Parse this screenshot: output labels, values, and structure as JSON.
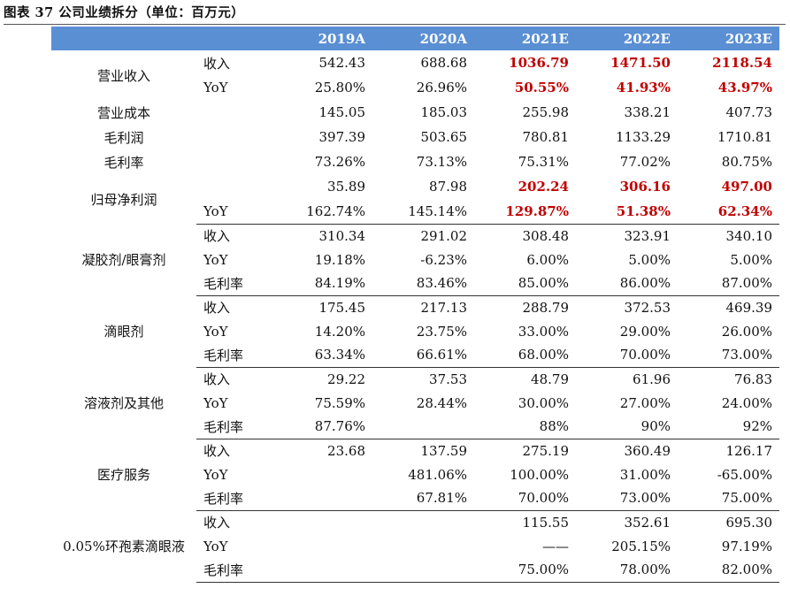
{
  "title": "图表 37  公司业绩拆分（单位：百万元）",
  "header": {
    "years": [
      "2019A",
      "2020A",
      "2021E",
      "2022E",
      "2023E"
    ]
  },
  "colors": {
    "header_bg": "#5b8fd3",
    "highlight": "#c00000"
  },
  "summary": {
    "revenue_label": "营业收入",
    "revenue_rows": [
      {
        "metric": "收入",
        "values": [
          "542.43",
          "688.68",
          "1036.79",
          "1471.50",
          "2118.54"
        ],
        "highlight": [
          false,
          false,
          true,
          true,
          true
        ]
      },
      {
        "metric": "YoY",
        "values": [
          "25.80%",
          "26.96%",
          "50.55%",
          "41.93%",
          "43.97%"
        ],
        "highlight": [
          false,
          false,
          true,
          true,
          true
        ]
      }
    ],
    "single_rows": [
      {
        "label": "营业成本",
        "values": [
          "145.05",
          "185.03",
          "255.98",
          "338.21",
          "407.73"
        ]
      },
      {
        "label": "毛利润",
        "values": [
          "397.39",
          "503.65",
          "780.81",
          "1133.29",
          "1710.81"
        ]
      },
      {
        "label": "毛利率",
        "values": [
          "73.26%",
          "73.13%",
          "75.31%",
          "77.02%",
          "80.75%"
        ]
      }
    ],
    "net_label": "归母净利润",
    "net_rows": [
      {
        "metric": "",
        "values": [
          "35.89",
          "87.98",
          "202.24",
          "306.16",
          "497.00"
        ],
        "highlight": [
          false,
          false,
          true,
          true,
          true
        ]
      },
      {
        "metric": "YoY",
        "values": [
          "162.74%",
          "145.14%",
          "129.87%",
          "51.38%",
          "62.34%"
        ],
        "highlight": [
          false,
          false,
          true,
          true,
          true
        ]
      }
    ]
  },
  "segments": [
    {
      "name": "凝胶剂/眼膏剂",
      "rows": [
        {
          "metric": "收入",
          "values": [
            "310.34",
            "291.02",
            "308.48",
            "323.91",
            "340.10"
          ]
        },
        {
          "metric": "YoY",
          "values": [
            "19.18%",
            "-6.23%",
            "6.00%",
            "5.00%",
            "5.00%"
          ]
        },
        {
          "metric": "毛利率",
          "values": [
            "84.19%",
            "83.46%",
            "85.00%",
            "86.00%",
            "87.00%"
          ]
        }
      ]
    },
    {
      "name": "滴眼剂",
      "rows": [
        {
          "metric": "收入",
          "values": [
            "175.45",
            "217.13",
            "288.79",
            "372.53",
            "469.39"
          ]
        },
        {
          "metric": "YoY",
          "values": [
            "14.20%",
            "23.75%",
            "33.00%",
            "29.00%",
            "26.00%"
          ]
        },
        {
          "metric": "毛利率",
          "values": [
            "63.34%",
            "66.61%",
            "68.00%",
            "70.00%",
            "73.00%"
          ]
        }
      ]
    },
    {
      "name": "溶液剂及其他",
      "rows": [
        {
          "metric": "收入",
          "values": [
            "29.22",
            "37.53",
            "48.79",
            "61.96",
            "76.83"
          ]
        },
        {
          "metric": "YoY",
          "values": [
            "75.59%",
            "28.44%",
            "30.00%",
            "27.00%",
            "24.00%"
          ]
        },
        {
          "metric": "毛利率",
          "values": [
            "87.76%",
            "",
            "88%",
            "90%",
            "92%"
          ]
        }
      ]
    },
    {
      "name": "医疗服务",
      "rows": [
        {
          "metric": "收入",
          "values": [
            "23.68",
            "137.59",
            "275.19",
            "360.49",
            "126.17"
          ]
        },
        {
          "metric": "YoY",
          "values": [
            "",
            "481.06%",
            "100.00%",
            "31.00%",
            "-65.00%"
          ]
        },
        {
          "metric": "毛利率",
          "values": [
            "",
            "67.81%",
            "70.00%",
            "73.00%",
            "75.00%"
          ]
        }
      ]
    },
    {
      "name": "0.05%环孢素滴眼液",
      "rows": [
        {
          "metric": "收入",
          "values": [
            "",
            "",
            "115.55",
            "352.61",
            "695.30"
          ]
        },
        {
          "metric": "YoY",
          "values": [
            "",
            "",
            "——",
            "205.15%",
            "97.19%"
          ]
        },
        {
          "metric": "毛利率",
          "values": [
            "",
            "",
            "75.00%",
            "78.00%",
            "82.00%"
          ]
        }
      ]
    }
  ]
}
